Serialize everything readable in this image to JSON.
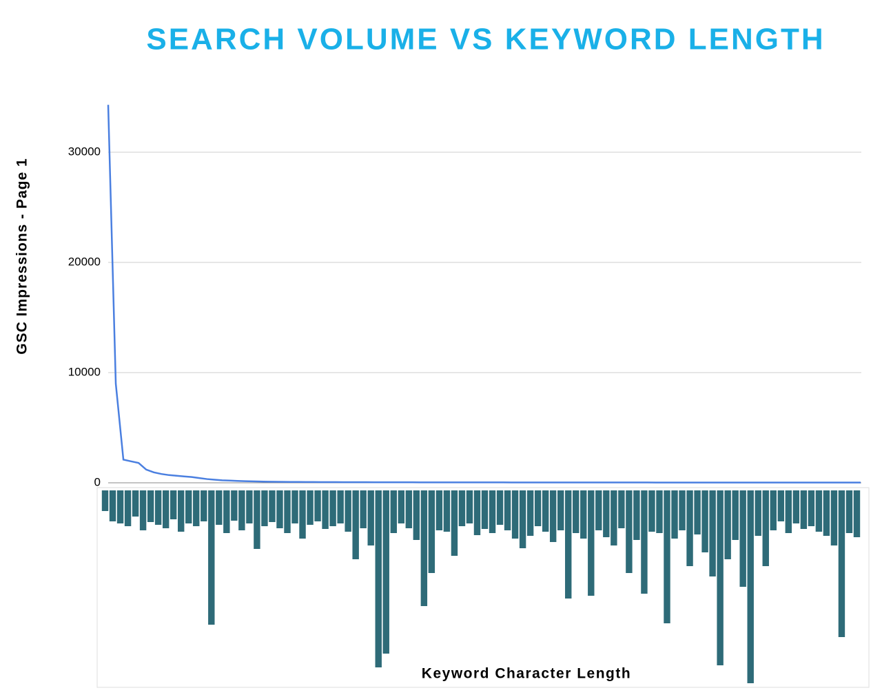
{
  "chart_data": [
    {
      "type": "line",
      "title": "SEARCH VOLUME VS KEYWORD LENGTH",
      "ylabel": "GSC Impressions - Page 1",
      "color": "#4a7fe0",
      "grid": true,
      "ylim": [
        0,
        34500
      ],
      "yticks": [
        0,
        10000,
        20000,
        30000
      ],
      "values": [
        34300,
        9000,
        2100,
        1950,
        1800,
        1200,
        950,
        800,
        700,
        640,
        580,
        520,
        430,
        340,
        280,
        230,
        200,
        170,
        150,
        130,
        115,
        100,
        90,
        85,
        80,
        75,
        70,
        68,
        65,
        62,
        60,
        58,
        56,
        54,
        52,
        50,
        48,
        46,
        45,
        44,
        43,
        42,
        41,
        40,
        40,
        39,
        39,
        38,
        38,
        37,
        37,
        36,
        36,
        35,
        35,
        34,
        34,
        33,
        33,
        32,
        32,
        32,
        31,
        31,
        30,
        30,
        30,
        29,
        29,
        28,
        28,
        28,
        27,
        27,
        27,
        26,
        26,
        26,
        25,
        25,
        25,
        24,
        24,
        24,
        23,
        23,
        23,
        22,
        22,
        22,
        22,
        21,
        21,
        21,
        21,
        20,
        20,
        20,
        20,
        20
      ]
    },
    {
      "type": "bar",
      "xlabel": "Keyword Character Length",
      "color": "#2e6b78",
      "values": [
        30,
        45,
        48,
        52,
        38,
        58,
        46,
        50,
        55,
        42,
        60,
        48,
        52,
        45,
        195,
        50,
        62,
        44,
        58,
        48,
        85,
        52,
        46,
        55,
        62,
        48,
        70,
        50,
        45,
        56,
        52,
        48,
        60,
        100,
        55,
        80,
        257,
        237,
        62,
        48,
        55,
        72,
        168,
        120,
        58,
        60,
        95,
        52,
        48,
        65,
        56,
        62,
        50,
        58,
        70,
        84,
        66,
        52,
        60,
        75,
        58,
        157,
        62,
        70,
        153,
        58,
        68,
        80,
        55,
        120,
        72,
        150,
        60,
        62,
        193,
        70,
        58,
        110,
        64,
        90,
        125,
        254,
        100,
        72,
        140,
        280,
        66,
        110,
        58,
        45,
        62,
        48,
        56,
        52,
        60,
        66,
        80,
        213,
        62,
        68
      ]
    }
  ]
}
